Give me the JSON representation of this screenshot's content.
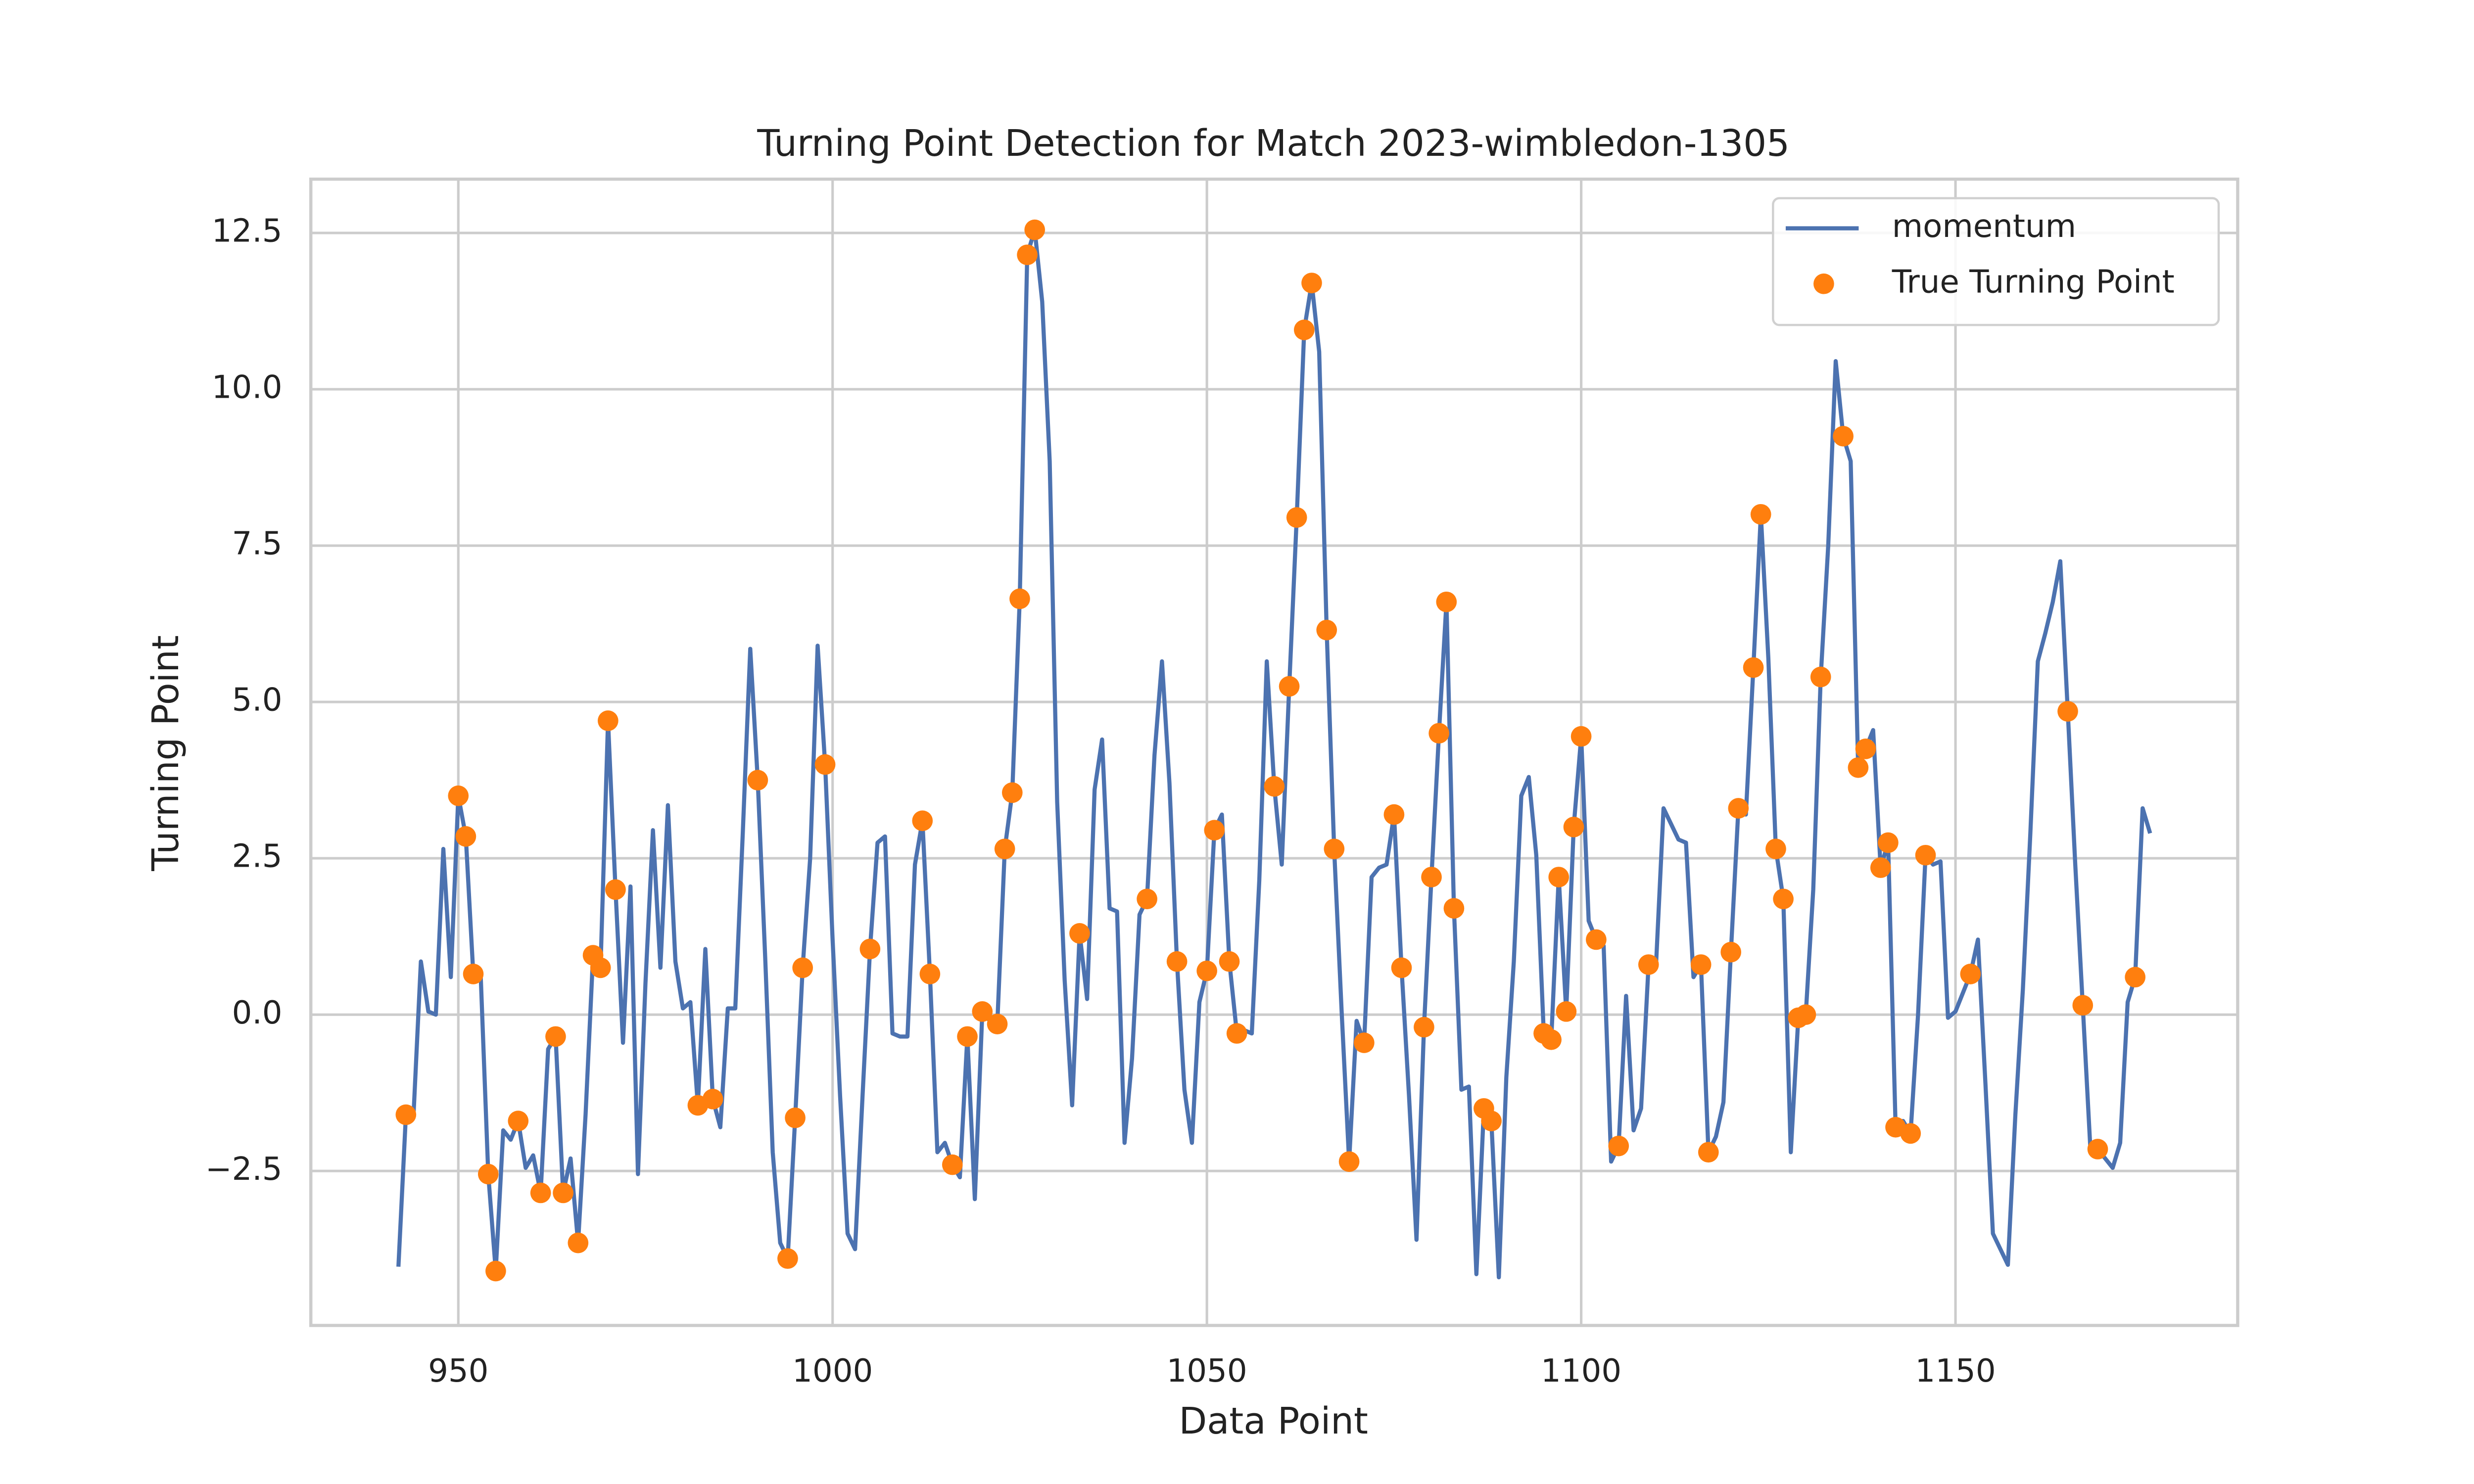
{
  "chart_data": {
    "type": "line",
    "title": "Turning Point Detection for Match 2023-wimbledon-1305",
    "x_label": "Data Point",
    "y_label": "Turning Point",
    "xlim": [
      930.3,
      1187.7
    ],
    "ylim": [
      -4.97,
      13.36
    ],
    "xticks": [
      950,
      1000,
      1050,
      1100,
      1150
    ],
    "yticks": [
      {
        "value": -2.5,
        "label": "−2.5"
      },
      {
        "value": 0,
        "label": "0.0"
      },
      2.5,
      {
        "value": 5,
        "label": "5.0"
      },
      7.5,
      {
        "value": 10,
        "label": "10.0"
      },
      12.5
    ],
    "grid": true,
    "legend": "upper right",
    "series": [
      {
        "name": "momentum",
        "style": "line",
        "color": "#4c72b0",
        "x": [
          942,
          943,
          944,
          945,
          946,
          947,
          948,
          949,
          950,
          951,
          952,
          953,
          954,
          955,
          956,
          957,
          958,
          959,
          960,
          961,
          962,
          963,
          964,
          965,
          966,
          967,
          968,
          969,
          970,
          971,
          972,
          973,
          974,
          975,
          976,
          977,
          978,
          979,
          980,
          981,
          982,
          983,
          984,
          985,
          986,
          987,
          988,
          989,
          990,
          991,
          992,
          993,
          994,
          995,
          996,
          997,
          998,
          999,
          1000,
          1001,
          1002,
          1003,
          1004,
          1005,
          1006,
          1007,
          1008,
          1009,
          1010,
          1011,
          1012,
          1013,
          1014,
          1015,
          1016,
          1017,
          1018,
          1019,
          1020,
          1021,
          1022,
          1023,
          1024,
          1025,
          1026,
          1027,
          1028,
          1029,
          1030,
          1031,
          1032,
          1033,
          1034,
          1035,
          1036,
          1037,
          1038,
          1039,
          1040,
          1041,
          1042,
          1043,
          1044,
          1045,
          1046,
          1047,
          1048,
          1049,
          1050,
          1051,
          1052,
          1053,
          1054,
          1055,
          1056,
          1057,
          1058,
          1059,
          1060,
          1061,
          1062,
          1063,
          1064,
          1065,
          1066,
          1067,
          1068,
          1069,
          1070,
          1071,
          1072,
          1073,
          1074,
          1075,
          1076,
          1077,
          1078,
          1079,
          1080,
          1081,
          1082,
          1083,
          1084,
          1085,
          1086,
          1087,
          1088,
          1089,
          1090,
          1091,
          1092,
          1093,
          1094,
          1095,
          1096,
          1097,
          1098,
          1099,
          1100,
          1101,
          1102,
          1103,
          1104,
          1105,
          1106,
          1107,
          1108,
          1109,
          1110,
          1111,
          1112,
          1113,
          1114,
          1115,
          1116,
          1117,
          1118,
          1119,
          1120,
          1121,
          1122,
          1123,
          1124,
          1125,
          1126,
          1127,
          1128,
          1129,
          1130,
          1131,
          1132,
          1133,
          1134,
          1135,
          1136,
          1137,
          1138,
          1139,
          1140,
          1141,
          1142,
          1143,
          1144,
          1145,
          1146,
          1147,
          1148,
          1149,
          1150,
          1151,
          1152,
          1153,
          1154,
          1155,
          1156,
          1157,
          1158,
          1159,
          1160,
          1161,
          1162,
          1163,
          1164,
          1165,
          1166,
          1167,
          1168,
          1169,
          1170,
          1171,
          1172,
          1173,
          1174,
          1175,
          1176
        ],
        "values": [
          -4.03,
          -1.6,
          -1.65,
          0.85,
          0.05,
          0.0,
          2.65,
          0.6,
          3.5,
          2.85,
          0.65,
          0.6,
          -2.55,
          -4.1,
          -1.85,
          -2.0,
          -1.7,
          -2.45,
          -2.25,
          -2.85,
          -0.55,
          -0.35,
          -2.85,
          -2.3,
          -3.65,
          -1.6,
          0.95,
          0.75,
          4.7,
          2.0,
          -0.45,
          2.05,
          -2.55,
          0.5,
          2.95,
          0.75,
          3.35,
          0.85,
          0.1,
          0.2,
          -1.45,
          1.05,
          -1.35,
          -1.8,
          0.1,
          0.1,
          2.9,
          5.85,
          3.75,
          0.9,
          -2.2,
          -3.65,
          -3.9,
          -1.65,
          0.75,
          2.5,
          5.9,
          4.0,
          1.2,
          -1.3,
          -3.5,
          -3.75,
          -1.3,
          1.05,
          2.75,
          2.85,
          -0.3,
          -0.35,
          -0.35,
          2.4,
          3.1,
          0.65,
          -2.2,
          -2.05,
          -2.4,
          -2.6,
          -0.35,
          -2.95,
          0.05,
          -0.1,
          -0.15,
          2.65,
          3.55,
          6.65,
          12.15,
          12.55,
          11.4,
          8.85,
          3.4,
          0.55,
          -1.45,
          1.3,
          0.25,
          3.6,
          4.4,
          1.7,
          1.65,
          -2.05,
          -0.7,
          1.6,
          1.85,
          4.15,
          5.65,
          3.7,
          0.85,
          -1.2,
          -2.05,
          0.2,
          0.7,
          2.95,
          3.2,
          0.85,
          -0.3,
          -0.25,
          -0.3,
          2.15,
          5.65,
          3.65,
          2.4,
          5.25,
          7.95,
          10.95,
          11.7,
          10.6,
          6.15,
          2.65,
          0.05,
          -2.35,
          -0.1,
          -0.45,
          2.2,
          2.35,
          2.4,
          3.2,
          0.75,
          -1.3,
          -3.6,
          -0.2,
          2.2,
          4.5,
          6.6,
          1.7,
          -1.2,
          -1.15,
          -4.15,
          -1.5,
          -1.7,
          -4.2,
          -1.0,
          0.85,
          3.5,
          3.8,
          2.55,
          -0.3,
          -0.4,
          2.2,
          0.05,
          3.0,
          4.45,
          1.5,
          1.2,
          1.1,
          -2.35,
          -2.1,
          0.3,
          -1.85,
          -1.5,
          0.8,
          0.8,
          3.3,
          3.05,
          2.8,
          2.75,
          0.6,
          0.8,
          -2.2,
          -1.95,
          -1.4,
          1.0,
          3.3,
          3.2,
          5.55,
          8.0,
          5.7,
          2.65,
          1.85,
          -2.2,
          -0.05,
          0.0,
          2.0,
          5.4,
          7.5,
          10.45,
          9.25,
          8.85,
          3.95,
          4.25,
          4.55,
          2.35,
          2.75,
          -1.8,
          -1.7,
          -1.9,
          0.0,
          2.55,
          2.4,
          2.45,
          -0.05,
          0.05,
          0.35,
          0.65,
          1.2,
          -1.1,
          -3.5,
          -3.75,
          -4.0,
          -1.6,
          0.4,
          2.9,
          5.65,
          6.1,
          6.6,
          7.25,
          4.85,
          2.4,
          0.15,
          -2.1,
          -2.15,
          -2.3,
          -2.45,
          -2.05,
          0.2,
          0.6,
          3.3,
          2.9
        ]
      },
      {
        "name": "True Turning Point",
        "style": "points",
        "color": "#ff7f0e",
        "x": [
          943,
          950,
          951,
          952,
          954,
          955,
          958,
          961,
          963,
          964,
          966,
          968,
          969,
          970,
          971,
          982,
          984,
          990,
          994,
          995,
          996,
          999,
          1005,
          1012,
          1013,
          1016,
          1018,
          1020,
          1022,
          1023,
          1024,
          1025,
          1026,
          1027,
          1033,
          1042,
          1046,
          1050,
          1051,
          1053,
          1054,
          1059,
          1061,
          1062,
          1063,
          1064,
          1066,
          1067,
          1069,
          1071,
          1075,
          1076,
          1079,
          1080,
          1081,
          1082,
          1083,
          1087,
          1088,
          1095,
          1096,
          1097,
          1098,
          1099,
          1100,
          1102,
          1105,
          1109,
          1116,
          1117,
          1120,
          1121,
          1123,
          1124,
          1126,
          1127,
          1129,
          1130,
          1132,
          1135,
          1137,
          1138,
          1140,
          1141,
          1142,
          1144,
          1146,
          1152,
          1165,
          1167,
          1169,
          1174
        ],
        "values": [
          -1.6,
          3.5,
          2.85,
          0.65,
          -2.55,
          -4.1,
          -1.7,
          -2.85,
          -0.35,
          -2.85,
          -3.65,
          0.95,
          0.75,
          4.7,
          2.0,
          -1.45,
          -1.35,
          3.75,
          -3.9,
          -1.65,
          0.75,
          4.0,
          1.05,
          3.1,
          0.65,
          -2.4,
          -0.35,
          0.05,
          -0.15,
          2.65,
          3.55,
          6.65,
          12.15,
          12.55,
          1.3,
          1.85,
          0.85,
          0.7,
          2.95,
          0.85,
          -0.3,
          3.65,
          5.25,
          7.95,
          10.95,
          11.7,
          6.15,
          2.65,
          -2.35,
          -0.45,
          3.2,
          0.75,
          -0.2,
          2.2,
          4.5,
          6.6,
          1.7,
          -1.5,
          -1.7,
          -0.3,
          -0.4,
          2.2,
          0.05,
          3.0,
          4.45,
          1.2,
          -2.1,
          0.8,
          0.8,
          -2.2,
          1.0,
          3.3,
          5.55,
          8.0,
          2.65,
          1.85,
          -0.05,
          0.0,
          5.4,
          9.25,
          3.95,
          4.25,
          2.35,
          2.75,
          -1.8,
          -1.9,
          2.55,
          0.65,
          4.85,
          0.15,
          -2.15,
          0.6
        ]
      }
    ]
  }
}
